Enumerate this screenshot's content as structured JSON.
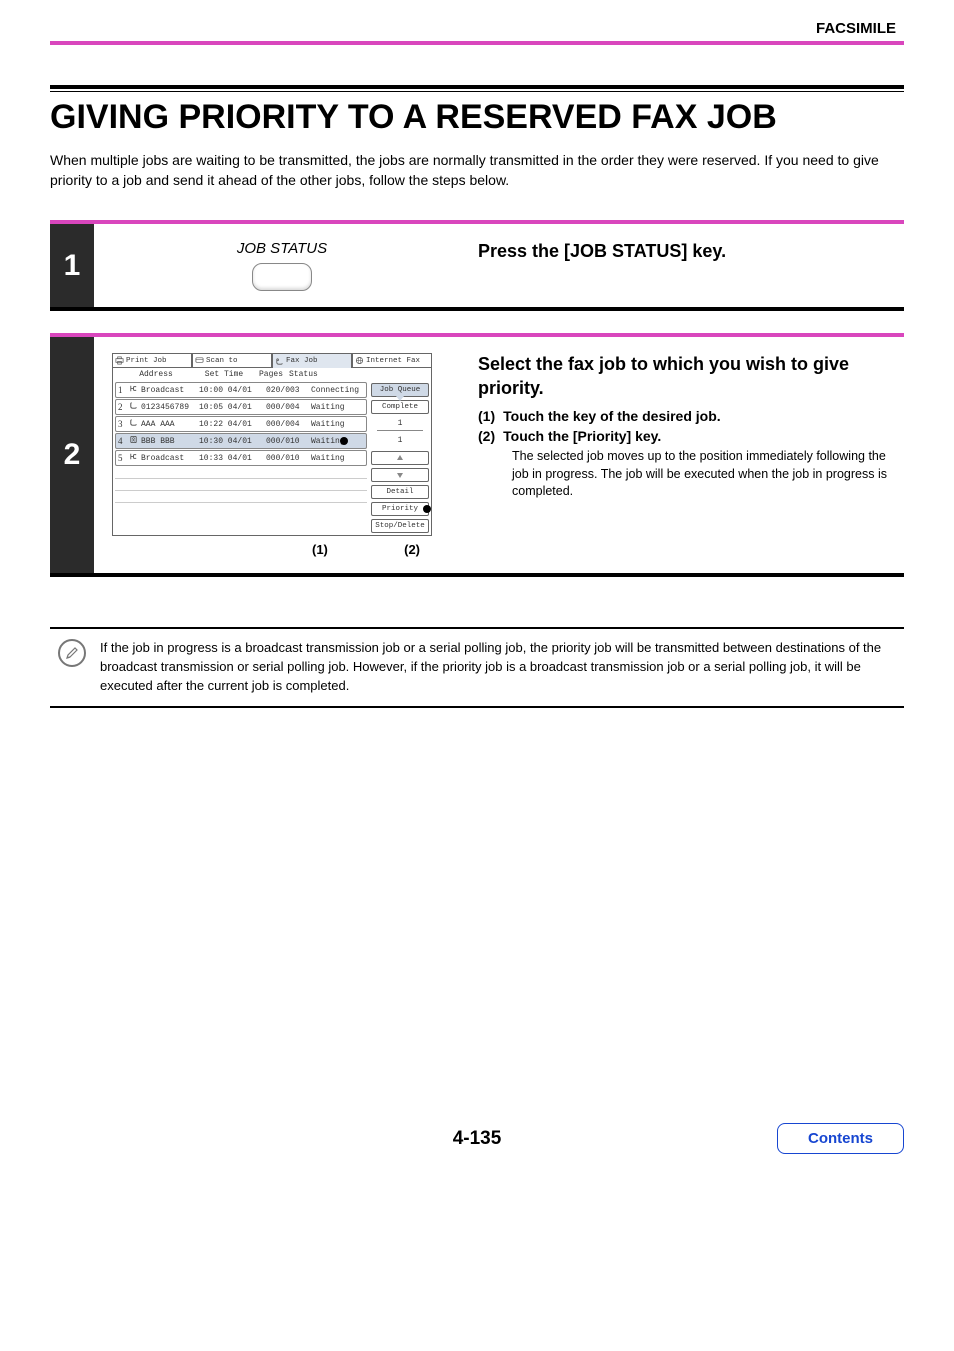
{
  "section_label": "FACSIMILE",
  "title": "GIVING PRIORITY TO A RESERVED FAX JOB",
  "intro": "When multiple jobs are waiting to be transmitted, the jobs are normally transmitted in the order they were reserved. If you need to give priority to a job and send it ahead of the other jobs, follow the steps below.",
  "step1": {
    "num": "1",
    "key_label": "JOB STATUS",
    "heading": "Press the [JOB STATUS] key."
  },
  "step2": {
    "num": "2",
    "heading": "Select the fax job to which you wish to give priority.",
    "sub1_n": "(1)",
    "sub1": "Touch the key of the desired job.",
    "sub2_n": "(2)",
    "sub2": "Touch the [Priority] key.",
    "sub2_note": "The selected job moves up to the position immediately following the job in progress. The job will be executed when the job in progress is completed.",
    "marker1": "(1)",
    "marker2": "(2)",
    "screen": {
      "tabs": {
        "print": "Print Job",
        "scan": "Scan to",
        "fax": "Fax Job",
        "ifax": "Internet Fax"
      },
      "cols": {
        "address": "Address",
        "settime": "Set Time",
        "pages": "Pages",
        "status": "Status"
      },
      "rows": [
        {
          "n": "1",
          "icon": "broadcast",
          "addr": "Broadcast",
          "time": "10:00 04/01",
          "pages": "020/003",
          "stat": "Connecting"
        },
        {
          "n": "2",
          "icon": "phone",
          "addr": "0123456789",
          "time": "10:05 04/01",
          "pages": "000/004",
          "stat": "Waiting"
        },
        {
          "n": "3",
          "icon": "phone",
          "addr": "AAA AAA",
          "time": "10:22 04/01",
          "pages": "000/004",
          "stat": "Waiting"
        },
        {
          "n": "4",
          "icon": "phonebook",
          "addr": "BBB BBB",
          "time": "10:30 04/01",
          "pages": "000/010",
          "stat": "Waiting",
          "selected": true
        },
        {
          "n": "5",
          "icon": "broadcast",
          "addr": "Broadcast",
          "time": "10:33 04/01",
          "pages": "000/010",
          "stat": "Waiting"
        }
      ],
      "side": {
        "queue": "Job Queue",
        "complete": "Complete",
        "pager": "1",
        "detail": "Detail",
        "priority": "Priority",
        "stop": "Stop/Delete"
      }
    }
  },
  "note": "If the job in progress is a broadcast transmission job or a serial polling job, the priority job will be transmitted between destinations of the broadcast transmission or serial polling job. However, if the priority job is a broadcast transmission job or a serial polling job, it will be executed after the current job is completed.",
  "page_number": "4-135",
  "contents_btn": "Contents",
  "colors": {
    "accent": "#d946bd",
    "link": "#1746d1",
    "selrow": "#cfd9e6"
  }
}
